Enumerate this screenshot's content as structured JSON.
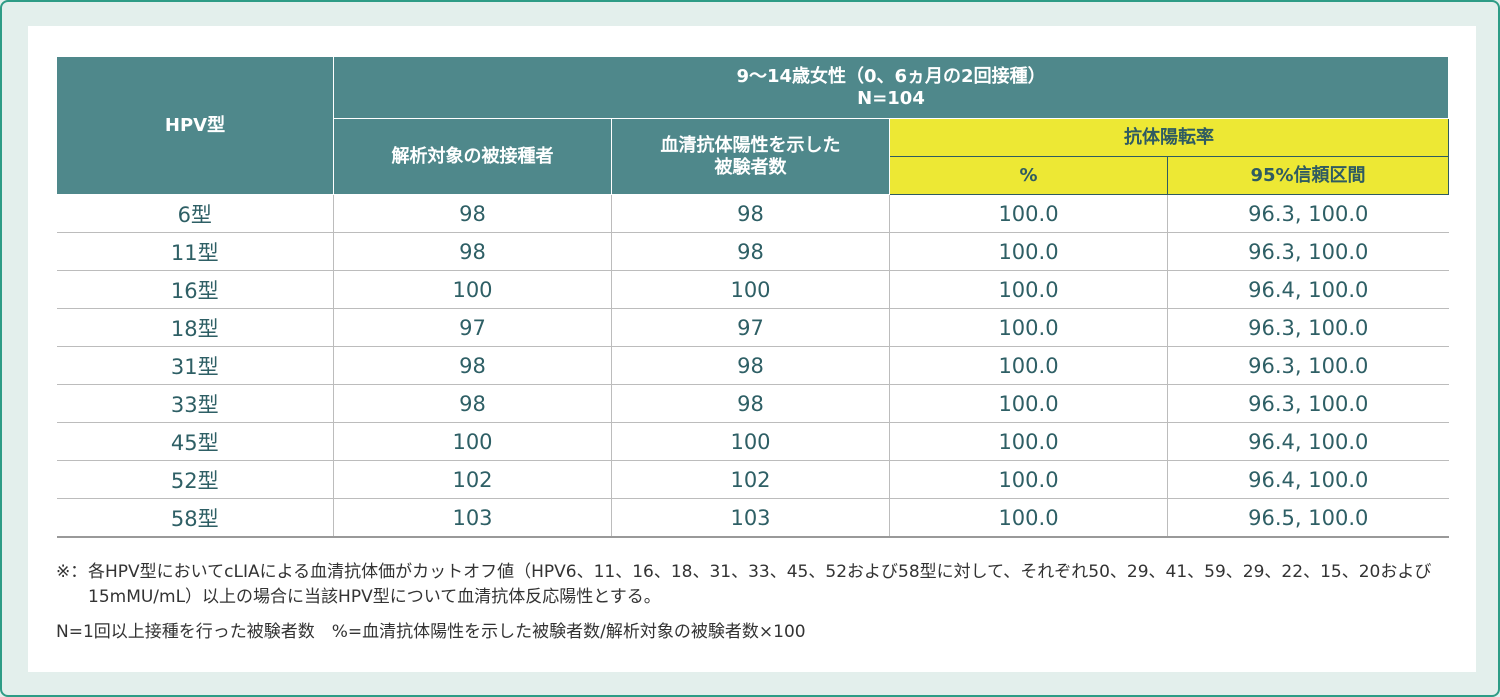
{
  "table": {
    "header": {
      "type_label": "HPV型",
      "group_title": "9～14歳女性（0、6ヵ月の2回接種）",
      "group_n": "N=104",
      "analyzed": "解析対象の被接種者",
      "seropositive_line1": "血清抗体陽性を示した",
      "seropositive_line2": "被験者数",
      "conversion_rate": "抗体陽転率",
      "percent": "%",
      "ci": "95%信頼区間"
    },
    "rows": [
      {
        "type": "6型",
        "analyzed": "98",
        "positive": "98",
        "pct": "100.0",
        "ci": "96.3, 100.0"
      },
      {
        "type": "11型",
        "analyzed": "98",
        "positive": "98",
        "pct": "100.0",
        "ci": "96.3, 100.0"
      },
      {
        "type": "16型",
        "analyzed": "100",
        "positive": "100",
        "pct": "100.0",
        "ci": "96.4, 100.0"
      },
      {
        "type": "18型",
        "analyzed": "97",
        "positive": "97",
        "pct": "100.0",
        "ci": "96.3, 100.0"
      },
      {
        "type": "31型",
        "analyzed": "98",
        "positive": "98",
        "pct": "100.0",
        "ci": "96.3, 100.0"
      },
      {
        "type": "33型",
        "analyzed": "98",
        "positive": "98",
        "pct": "100.0",
        "ci": "96.3, 100.0"
      },
      {
        "type": "45型",
        "analyzed": "100",
        "positive": "100",
        "pct": "100.0",
        "ci": "96.4, 100.0"
      },
      {
        "type": "52型",
        "analyzed": "102",
        "positive": "102",
        "pct": "100.0",
        "ci": "96.4, 100.0"
      },
      {
        "type": "58型",
        "analyzed": "103",
        "positive": "103",
        "pct": "100.0",
        "ci": "96.5, 100.0"
      }
    ]
  },
  "notes": {
    "mark": "※：",
    "footnote": "各HPV型においてcLIAによる血清抗体価がカットオフ値（HPV6、11、16、18、31、33、45、52および58型に対して、それぞれ50、29、41、59、29、22、15、20および15mMU/mL）以上の場合に当該HPV型について血清抗体反応陽性とする。",
    "definition": "N=1回以上接種を行った被験者数　%=血清抗体陽性を示した被験者数/解析対象の被験者数×100"
  },
  "colors": {
    "frame_bg": "#e3efec",
    "frame_border": "#2e9c86",
    "header_teal": "#4f888b",
    "header_yellow": "#ede834",
    "cell_text": "#2e5f65"
  }
}
